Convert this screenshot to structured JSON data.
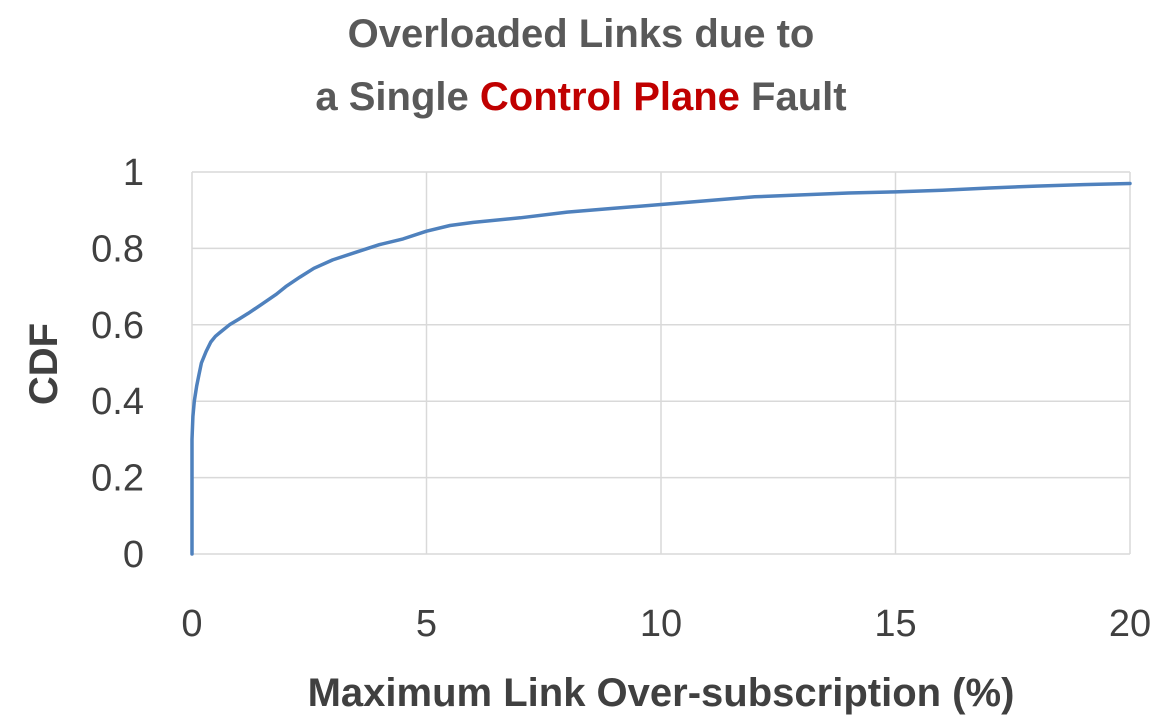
{
  "title": {
    "line1": "Overloaded Links due to",
    "line2_prefix": "a Single ",
    "line2_highlight": "Control Plane",
    "line2_suffix": " Fault",
    "highlight_color": "#C00000",
    "text_color": "#595959"
  },
  "chart_data": {
    "type": "line",
    "xlabel": "Maximum Link Over-subscription (%)",
    "ylabel": "CDF",
    "xlim": [
      0,
      20
    ],
    "ylim": [
      0,
      1
    ],
    "x_ticks": [
      0,
      5,
      10,
      15,
      20
    ],
    "y_ticks": [
      0,
      0.2,
      0.4,
      0.6,
      0.8,
      1
    ],
    "x_tick_labels": [
      "0",
      "5",
      "10",
      "15",
      "20"
    ],
    "y_tick_labels": [
      "0",
      "0.2",
      "0.4",
      "0.6",
      "0.8",
      "1"
    ],
    "grid": true,
    "line_color": "#4F81BD",
    "grid_color": "#D9D9D9",
    "series": [
      {
        "x": [
          0,
          0,
          0.02,
          0.05,
          0.1,
          0.15,
          0.2,
          0.3,
          0.4,
          0.5,
          0.6,
          0.8,
          1.0,
          1.2,
          1.5,
          1.8,
          2.0,
          2.3,
          2.6,
          3.0,
          3.5,
          4.0,
          4.5,
          5.0,
          5.5,
          6.0,
          7.0,
          8.0,
          9.0,
          10.0,
          11.0,
          12.0,
          13.0,
          14.0,
          15.0,
          16.0,
          17.0,
          18.0,
          19.0,
          20.0
        ],
        "y": [
          0,
          0.3,
          0.36,
          0.4,
          0.44,
          0.47,
          0.5,
          0.53,
          0.555,
          0.57,
          0.58,
          0.6,
          0.615,
          0.63,
          0.655,
          0.68,
          0.7,
          0.725,
          0.748,
          0.77,
          0.79,
          0.81,
          0.825,
          0.845,
          0.86,
          0.868,
          0.88,
          0.895,
          0.905,
          0.915,
          0.925,
          0.935,
          0.94,
          0.945,
          0.948,
          0.952,
          0.958,
          0.963,
          0.967,
          0.97
        ]
      }
    ]
  }
}
